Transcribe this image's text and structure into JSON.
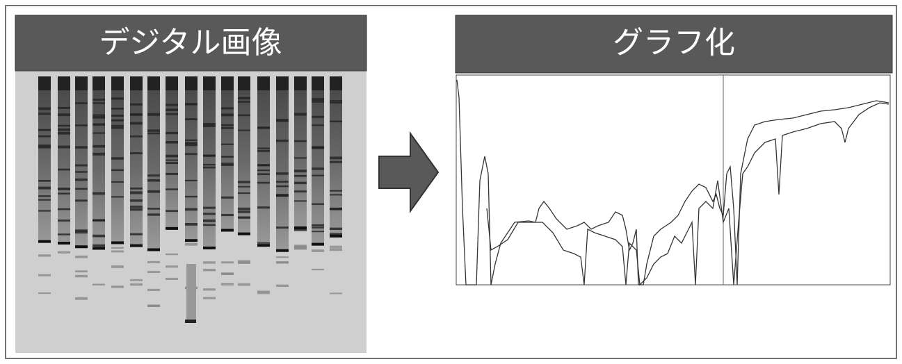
{
  "left_panel": {
    "title": "デジタル画像"
  },
  "right_panel": {
    "title": "グラフ化"
  }
}
